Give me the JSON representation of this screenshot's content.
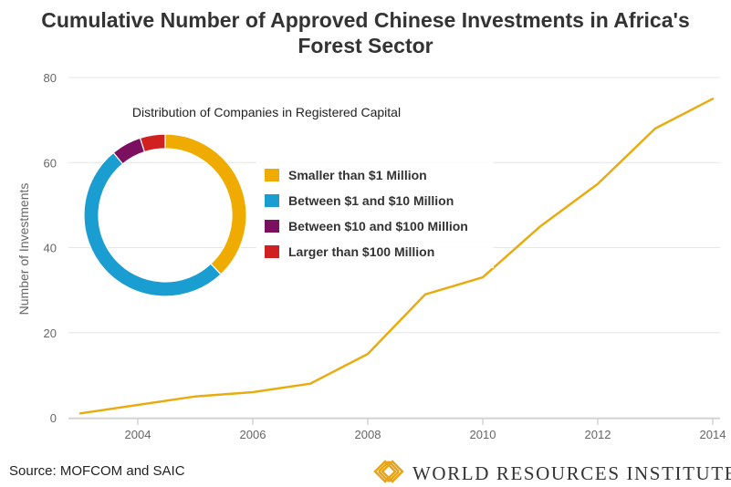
{
  "title_line1": "Cumulative Number of Approved Chinese Investments in Africa's",
  "title_line2": "Forest Sector",
  "source": "Source: MOFCOM and SAIC",
  "logo_text": "WORLD RESOURCES INSTITUTE",
  "colors": {
    "line": "#e8ac10",
    "grid": "#e6e6e6",
    "axis_text": "#666666",
    "donut": [
      "#f0ab00",
      "#1a9dd0",
      "#7b1060",
      "#d02020"
    ]
  },
  "chart_data": [
    {
      "type": "line",
      "title": "",
      "xlabel": "",
      "ylabel": "Number of Investments",
      "x": [
        2003,
        2004,
        2005,
        2006,
        2007,
        2008,
        2009,
        2010,
        2011,
        2012,
        2013,
        2014
      ],
      "series": [
        {
          "values": [
            1,
            3,
            5,
            6,
            8,
            15,
            29,
            33,
            45,
            55,
            68,
            75
          ]
        }
      ],
      "xticks": [
        "2004",
        "2006",
        "2008",
        "2010",
        "2012",
        "2014"
      ],
      "yticks": [
        "0",
        "20",
        "40",
        "60",
        "80"
      ],
      "xlim": [
        2003,
        2014
      ],
      "ylim": [
        0,
        80
      ],
      "grid": "horizontal"
    },
    {
      "type": "pie",
      "title": "Distribution of Companies in Registered Capital",
      "labels": [
        "Smaller than $1 Million",
        "Between $1 and $10 Million",
        "Between $10 and $100 Million",
        "Larger than $100 Million"
      ],
      "values": [
        38,
        51,
        6,
        5
      ],
      "donut": true,
      "legend": "right"
    }
  ]
}
